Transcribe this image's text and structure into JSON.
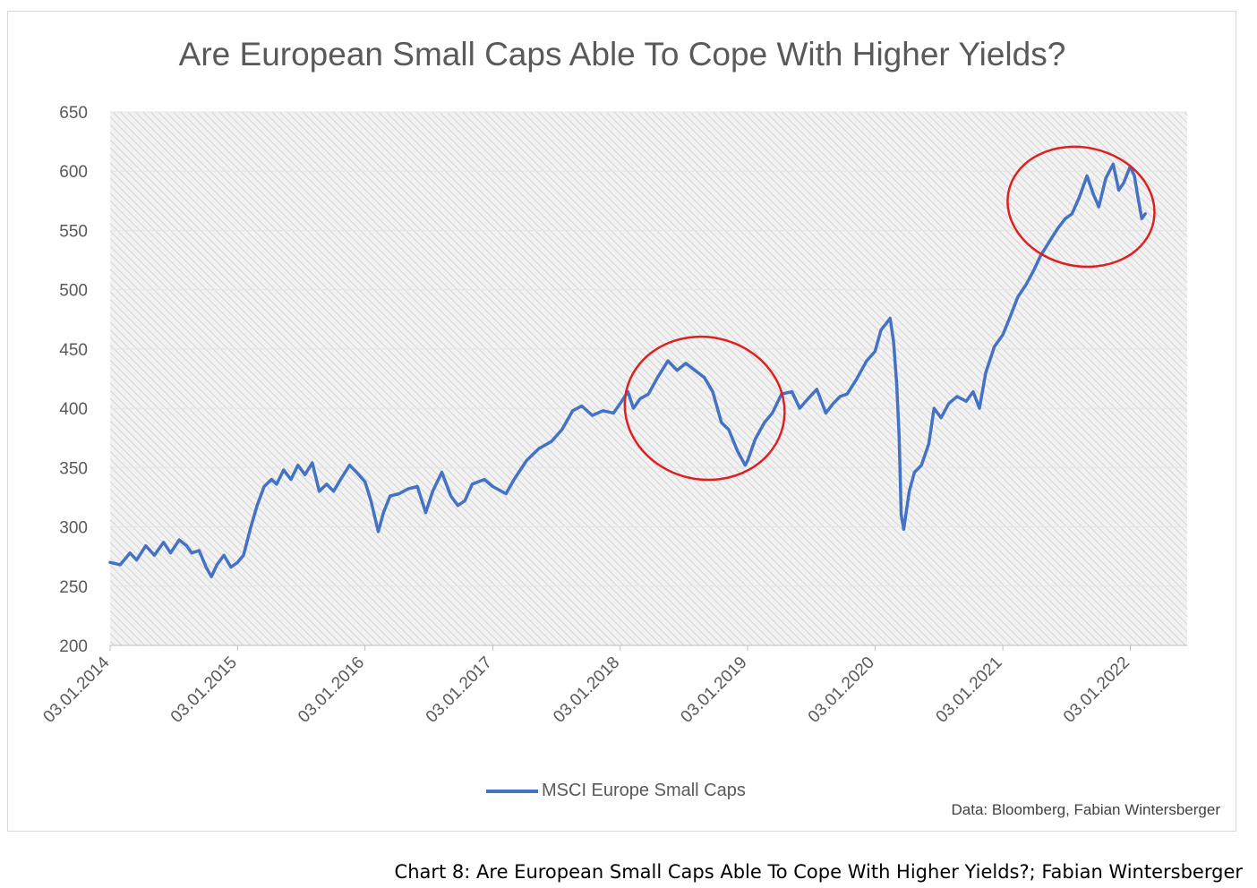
{
  "chart_data": {
    "type": "line",
    "title": "Are European Small Caps Able To Cope With Higher Yields?",
    "xlabel": "",
    "ylabel": "",
    "ylim": [
      200,
      650
    ],
    "y_ticks": [
      200,
      250,
      300,
      350,
      400,
      450,
      500,
      550,
      600,
      650
    ],
    "x_ticks": [
      "03.01.2014",
      "03.01.2015",
      "03.01.2016",
      "03.01.2017",
      "03.01.2018",
      "03.01.2019",
      "03.01.2020",
      "03.01.2021",
      "03.01.2022"
    ],
    "xlim": [
      "2014-01-03",
      "2022-06-15"
    ],
    "grid": false,
    "legend_position": "bottom",
    "series": [
      {
        "name": "MSCI Europe Small Caps",
        "color": "#4472c4",
        "points": [
          [
            "2014-01-03",
            270
          ],
          [
            "2014-02-01",
            268
          ],
          [
            "2014-03-01",
            278
          ],
          [
            "2014-03-20",
            272
          ],
          [
            "2014-04-15",
            284
          ],
          [
            "2014-05-10",
            276
          ],
          [
            "2014-06-05",
            287
          ],
          [
            "2014-06-25",
            278
          ],
          [
            "2014-07-20",
            289
          ],
          [
            "2014-08-10",
            284
          ],
          [
            "2014-08-25",
            278
          ],
          [
            "2014-09-15",
            280
          ],
          [
            "2014-10-05",
            266
          ],
          [
            "2014-10-20",
            258
          ],
          [
            "2014-11-05",
            268
          ],
          [
            "2014-11-25",
            276
          ],
          [
            "2014-12-15",
            266
          ],
          [
            "2015-01-03",
            270
          ],
          [
            "2015-01-20",
            276
          ],
          [
            "2015-02-10",
            300
          ],
          [
            "2015-02-28",
            318
          ],
          [
            "2015-03-20",
            334
          ],
          [
            "2015-04-10",
            340
          ],
          [
            "2015-04-25",
            336
          ],
          [
            "2015-05-15",
            348
          ],
          [
            "2015-06-05",
            340
          ],
          [
            "2015-06-25",
            352
          ],
          [
            "2015-07-15",
            344
          ],
          [
            "2015-08-05",
            354
          ],
          [
            "2015-08-25",
            330
          ],
          [
            "2015-09-15",
            336
          ],
          [
            "2015-10-05",
            330
          ],
          [
            "2015-10-25",
            340
          ],
          [
            "2015-11-20",
            352
          ],
          [
            "2015-12-10",
            346
          ],
          [
            "2016-01-03",
            338
          ],
          [
            "2016-01-20",
            322
          ],
          [
            "2016-02-10",
            296
          ],
          [
            "2016-02-25",
            312
          ],
          [
            "2016-03-15",
            326
          ],
          [
            "2016-04-10",
            328
          ],
          [
            "2016-05-05",
            332
          ],
          [
            "2016-06-01",
            334
          ],
          [
            "2016-06-25",
            312
          ],
          [
            "2016-07-15",
            330
          ],
          [
            "2016-08-10",
            346
          ],
          [
            "2016-09-05",
            326
          ],
          [
            "2016-09-25",
            318
          ],
          [
            "2016-10-15",
            322
          ],
          [
            "2016-11-05",
            336
          ],
          [
            "2016-12-10",
            340
          ],
          [
            "2017-01-03",
            334
          ],
          [
            "2017-02-10",
            328
          ],
          [
            "2017-03-05",
            340
          ],
          [
            "2017-04-10",
            356
          ],
          [
            "2017-05-15",
            366
          ],
          [
            "2017-06-20",
            372
          ],
          [
            "2017-07-20",
            382
          ],
          [
            "2017-08-20",
            398
          ],
          [
            "2017-09-15",
            402
          ],
          [
            "2017-10-15",
            394
          ],
          [
            "2017-11-15",
            398
          ],
          [
            "2017-12-15",
            396
          ],
          [
            "2018-01-03",
            404
          ],
          [
            "2018-01-25",
            414
          ],
          [
            "2018-02-10",
            400
          ],
          [
            "2018-03-01",
            408
          ],
          [
            "2018-03-25",
            412
          ],
          [
            "2018-04-20",
            426
          ],
          [
            "2018-05-20",
            440
          ],
          [
            "2018-06-15",
            432
          ],
          [
            "2018-07-10",
            438
          ],
          [
            "2018-08-05",
            432
          ],
          [
            "2018-09-01",
            426
          ],
          [
            "2018-09-25",
            414
          ],
          [
            "2018-10-20",
            388
          ],
          [
            "2018-11-10",
            382
          ],
          [
            "2018-12-05",
            364
          ],
          [
            "2018-12-27",
            352
          ],
          [
            "2019-01-03",
            356
          ],
          [
            "2019-01-25",
            374
          ],
          [
            "2019-02-20",
            388
          ],
          [
            "2019-03-15",
            396
          ],
          [
            "2019-04-10",
            412
          ],
          [
            "2019-05-10",
            414
          ],
          [
            "2019-06-01",
            400
          ],
          [
            "2019-06-25",
            408
          ],
          [
            "2019-07-20",
            416
          ],
          [
            "2019-08-15",
            396
          ],
          [
            "2019-09-05",
            404
          ],
          [
            "2019-09-25",
            410
          ],
          [
            "2019-10-15",
            412
          ],
          [
            "2019-11-10",
            424
          ],
          [
            "2019-12-10",
            440
          ],
          [
            "2020-01-03",
            448
          ],
          [
            "2020-01-20",
            466
          ],
          [
            "2020-02-05",
            472
          ],
          [
            "2020-02-15",
            476
          ],
          [
            "2020-02-25",
            456
          ],
          [
            "2020-03-05",
            420
          ],
          [
            "2020-03-12",
            376
          ],
          [
            "2020-03-18",
            310
          ],
          [
            "2020-03-25",
            298
          ],
          [
            "2020-04-10",
            330
          ],
          [
            "2020-04-25",
            346
          ],
          [
            "2020-05-15",
            352
          ],
          [
            "2020-06-05",
            370
          ],
          [
            "2020-06-20",
            400
          ],
          [
            "2020-07-10",
            392
          ],
          [
            "2020-08-01",
            404
          ],
          [
            "2020-08-25",
            410
          ],
          [
            "2020-09-20",
            406
          ],
          [
            "2020-10-10",
            414
          ],
          [
            "2020-10-28",
            400
          ],
          [
            "2020-11-15",
            430
          ],
          [
            "2020-12-10",
            452
          ],
          [
            "2021-01-03",
            462
          ],
          [
            "2021-01-25",
            478
          ],
          [
            "2021-02-15",
            494
          ],
          [
            "2021-03-10",
            504
          ],
          [
            "2021-04-01",
            516
          ],
          [
            "2021-04-20",
            528
          ],
          [
            "2021-05-15",
            540
          ],
          [
            "2021-06-10",
            552
          ],
          [
            "2021-07-01",
            560
          ],
          [
            "2021-07-20",
            564
          ],
          [
            "2021-08-10",
            578
          ],
          [
            "2021-09-01",
            596
          ],
          [
            "2021-09-20",
            580
          ],
          [
            "2021-10-05",
            570
          ],
          [
            "2021-10-25",
            594
          ],
          [
            "2021-11-15",
            606
          ],
          [
            "2021-12-01",
            584
          ],
          [
            "2021-12-15",
            590
          ],
          [
            "2022-01-03",
            604
          ],
          [
            "2022-01-15",
            596
          ],
          [
            "2022-01-25",
            578
          ],
          [
            "2022-02-05",
            560
          ],
          [
            "2022-02-15",
            564
          ]
        ]
      }
    ],
    "annotations": [
      {
        "type": "ellipse",
        "color": "#e02020",
        "x_range": [
          "2018-01-15",
          "2019-04-20"
        ],
        "y_range": [
          340,
          460
        ]
      },
      {
        "type": "ellipse",
        "color": "#e02020",
        "x_range": [
          "2021-01-15",
          "2022-03-15"
        ],
        "y_range": [
          520,
          620
        ]
      }
    ],
    "legend": [
      "MSCI Europe Small Caps"
    ],
    "source_note": "Data: Bloomberg, Fabian Wintersberger"
  },
  "caption": "Chart 8: Are European Small Caps Able To Cope With Higher Yields?; Fabian Wintersberger"
}
